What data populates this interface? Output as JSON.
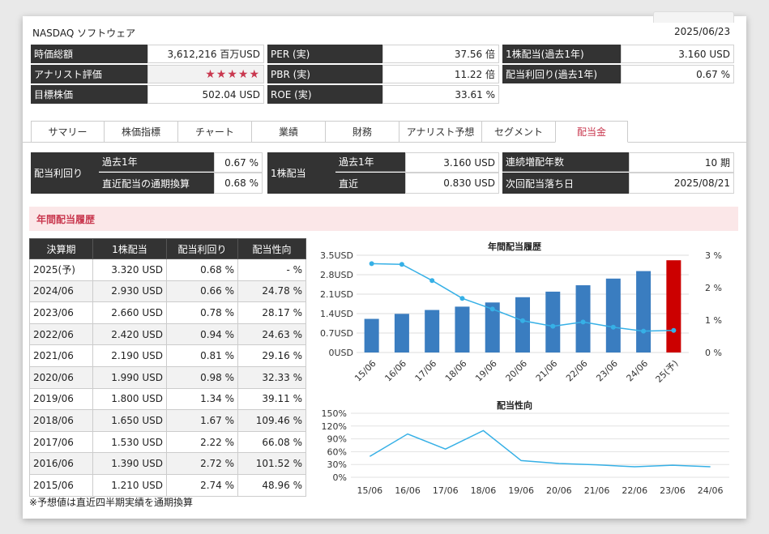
{
  "header": {
    "title": "NASDAQ ソフトウェア",
    "date": "2025/06/23"
  },
  "summary": {
    "market_cap_label": "時価総額",
    "market_cap_value": "3,612,216 百万USD",
    "analyst_label": "アナリスト評価",
    "analyst_stars": "★★★★★",
    "analyst_rating_of_5": 5,
    "target_label": "目標株価",
    "target_value": "502.04 USD",
    "per_label": "PER (実)",
    "per_value": "37.56 倍",
    "pbr_label": "PBR (実)",
    "pbr_value": "11.22 倍",
    "roe_label": "ROE (実)",
    "roe_value": "33.61 %",
    "dps_label": "1株配当(過去1年)",
    "dps_value": "3.160 USD",
    "yield_label": "配当利回り(過去1年)",
    "yield_value": "0.67 %"
  },
  "tabs": [
    {
      "label": "サマリー"
    },
    {
      "label": "株価指標"
    },
    {
      "label": "チャート"
    },
    {
      "label": "業績"
    },
    {
      "label": "財務"
    },
    {
      "label": "アナリスト予想"
    },
    {
      "label": "セグメント"
    },
    {
      "label": "配当金"
    }
  ],
  "dividend": {
    "yield_label": "配当利回り",
    "yield_past_label": "過去1年",
    "yield_past_value": "0.67 %",
    "yield_recent_label": "直近配当の通期換算",
    "yield_recent_value": "0.68 %",
    "dps_label": "1株配当",
    "dps_past_label": "過去1年",
    "dps_past_value": "3.160 USD",
    "dps_recent_label": "直近",
    "dps_recent_value": "0.830 USD",
    "streak_label": "連続増配年数",
    "streak_value": "10 期",
    "exdate_label": "次回配当落ち日",
    "exdate_value": "2025/08/21"
  },
  "section_title": "年間配当履歴",
  "history": {
    "headers": [
      "決算期",
      "1株配当",
      "配当利回り",
      "配当性向"
    ],
    "rows": [
      [
        "2025(予)",
        "3.320 USD",
        "0.68 %",
        "- %"
      ],
      [
        "2024/06",
        "2.930 USD",
        "0.66 %",
        "24.78 %"
      ],
      [
        "2023/06",
        "2.660 USD",
        "0.78 %",
        "28.17 %"
      ],
      [
        "2022/06",
        "2.420 USD",
        "0.94 %",
        "24.63 %"
      ],
      [
        "2021/06",
        "2.190 USD",
        "0.81 %",
        "29.16 %"
      ],
      [
        "2020/06",
        "1.990 USD",
        "0.98 %",
        "32.33 %"
      ],
      [
        "2019/06",
        "1.800 USD",
        "1.34 %",
        "39.11 %"
      ],
      [
        "2018/06",
        "1.650 USD",
        "1.67 %",
        "109.46 %"
      ],
      [
        "2017/06",
        "1.530 USD",
        "2.22 %",
        "66.08 %"
      ],
      [
        "2016/06",
        "1.390 USD",
        "2.72 %",
        "101.52 %"
      ],
      [
        "2015/06",
        "1.210 USD",
        "2.74 %",
        "48.96 %"
      ]
    ],
    "note": "※予想値は直近四半期実績を通期換算"
  },
  "colors": {
    "bar": "#3a7dc0",
    "bar_forecast": "#cc0000",
    "line": "#36b0e6",
    "accent": "#c9384f",
    "header_bg": "#333333"
  },
  "chart_data": [
    {
      "type": "bar",
      "title": "年間配当履歴",
      "categories": [
        "15/06",
        "16/06",
        "17/06",
        "18/06",
        "19/06",
        "20/06",
        "21/06",
        "22/06",
        "23/06",
        "24/06",
        "25(予)"
      ],
      "series": [
        {
          "values": [
            1.21,
            1.39,
            1.53,
            1.65,
            1.8,
            1.99,
            2.19,
            2.42,
            2.66,
            2.93,
            3.32
          ]
        },
        {
          "values": [
            2.74,
            2.72,
            2.22,
            1.67,
            1.34,
            0.98,
            0.81,
            0.94,
            0.78,
            0.66,
            0.68
          ]
        }
      ],
      "y_ticks": [
        "0USD",
        "0.7USD",
        "1.4USD",
        "2.1USD",
        "2.8USD",
        "3.5USD"
      ],
      "y2_ticks": [
        "0 %",
        "1 %",
        "2 %",
        "3 %"
      ],
      "ylim": [
        0,
        3.5
      ],
      "y2lim": [
        0,
        3
      ]
    },
    {
      "type": "line",
      "title": "配当性向",
      "categories": [
        "15/06",
        "16/06",
        "17/06",
        "18/06",
        "19/06",
        "20/06",
        "21/06",
        "22/06",
        "23/06",
        "24/06"
      ],
      "values": [
        48.96,
        101.52,
        66.08,
        109.46,
        39.11,
        32.33,
        29.16,
        24.63,
        28.17,
        24.78
      ],
      "y_ticks": [
        "0%",
        "30%",
        "60%",
        "90%",
        "120%",
        "150%"
      ],
      "ylim": [
        0,
        150
      ]
    }
  ]
}
